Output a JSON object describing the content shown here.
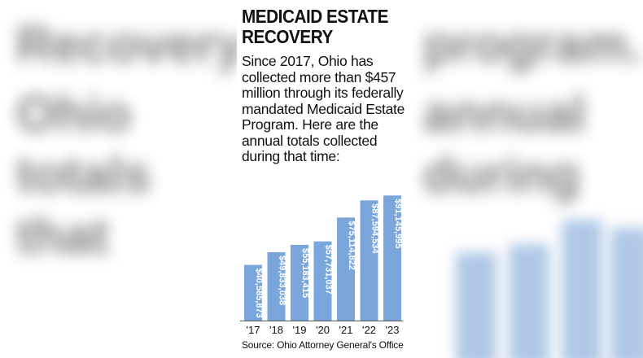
{
  "chart_data": {
    "type": "bar",
    "title": "MEDICAID ESTATE RECOVERY",
    "subtitle": "Since 2017, Ohio has collected more than $457 million through its federally mandated Medicaid Estate Program. Here are the annual totals collected during that time:",
    "categories": [
      "'17",
      "'18",
      "'19",
      "'20",
      "'21",
      "'22",
      "'23"
    ],
    "values": [
      40585873,
      49833038,
      55183415,
      57731037,
      75114822,
      87594534,
      91145995
    ],
    "data_labels": [
      "$40,585,873",
      "$49,833,038",
      "$55,183,415",
      "$57,731,037",
      "$75,114,822",
      "$87,594,534",
      "$91,145,995"
    ],
    "ylim": [
      0,
      95000000
    ],
    "grid": false,
    "bar_color": "#7ba6dc",
    "source": "Source: Ohio Attorney General's Office"
  }
}
